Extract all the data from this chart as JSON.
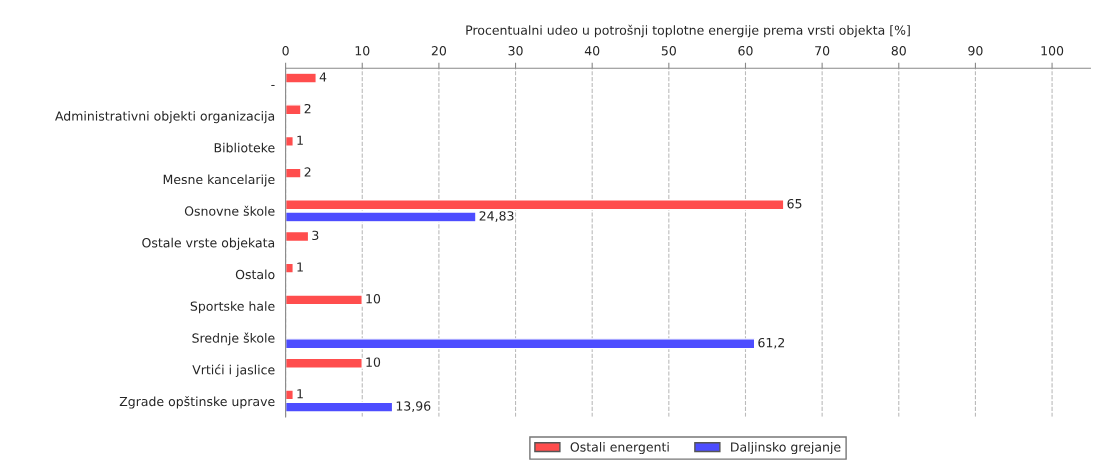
{
  "chart_data": {
    "type": "bar",
    "orientation": "horizontal",
    "xlabel": "Procentualni udeo u potrošnji toplotne energije prema vrsti objekta [%]",
    "categories": [
      "-",
      "Administrativni objekti organizacija",
      "Biblioteke",
      "Mesne kancelarije",
      "Osnovne škole",
      "Ostale vrste objekata",
      "Ostalo",
      "Sportske hale",
      "Srednje škole",
      "Vrtići i jaslice",
      "Zgrade opštinske uprave"
    ],
    "series": [
      {
        "name": "Ostali energenti",
        "color": "#ff4d4d",
        "values": [
          4,
          2,
          1,
          2,
          65,
          3,
          1,
          10,
          null,
          10,
          1
        ],
        "value_labels": [
          "4",
          "2",
          "1",
          "2",
          "65",
          "3",
          "1",
          "10",
          null,
          "10",
          "1"
        ]
      },
      {
        "name": "Daljinsko grejanje",
        "color": "#4d4dff",
        "values": [
          null,
          null,
          null,
          null,
          24.83,
          null,
          null,
          null,
          61.2,
          null,
          13.96
        ],
        "value_labels": [
          null,
          null,
          null,
          null,
          "24,83",
          null,
          null,
          null,
          "61,2",
          null,
          "13,96"
        ]
      }
    ],
    "xlim": [
      0,
      105
    ],
    "xticks": [
      0,
      10,
      20,
      30,
      40,
      50,
      60,
      70,
      80,
      90,
      100
    ],
    "grid": "x",
    "legend": "bottom"
  }
}
